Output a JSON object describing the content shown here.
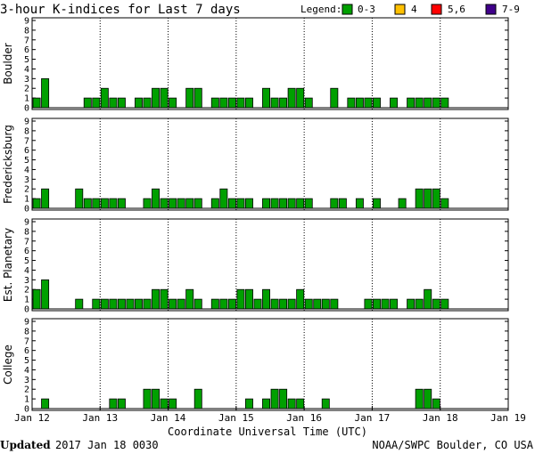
{
  "title": "3-hour K-indices for Last 7 days",
  "legend": {
    "label": "Legend:",
    "items": [
      {
        "label": "0-3",
        "color": "#00a000"
      },
      {
        "label": "4",
        "color": "#ffc000"
      },
      {
        "label": "5,6",
        "color": "#ff0000"
      },
      {
        "label": "7-9",
        "color": "#40008a"
      }
    ]
  },
  "footer": {
    "updated_label": "Updated",
    "updated_value": "2017 Jan 18 0030",
    "source": "NOAA/SWPC Boulder, CO USA"
  },
  "chart_data": [
    {
      "type": "bar",
      "name": "Boulder",
      "ylabel": "Boulder",
      "ylim": [
        0,
        9
      ],
      "yticks": [
        "0",
        "1",
        "2",
        "3",
        "4",
        "5",
        "6",
        "7",
        "8",
        "9"
      ],
      "values": [
        1,
        3,
        0,
        0,
        0,
        0,
        1,
        1,
        2,
        1,
        1,
        0,
        1,
        1,
        2,
        2,
        1,
        0,
        2,
        2,
        0,
        1,
        1,
        1,
        1,
        1,
        0,
        2,
        1,
        1,
        2,
        2,
        1,
        0,
        0,
        2,
        0,
        1,
        1,
        1,
        1,
        0,
        1,
        0,
        1,
        1,
        1,
        1,
        1
      ],
      "bar_color": "#00a000"
    },
    {
      "type": "bar",
      "name": "Fredericksburg",
      "ylabel": "Fredericksburg",
      "ylim": [
        0,
        9
      ],
      "yticks": [
        "0",
        "1",
        "2",
        "3",
        "4",
        "5",
        "6",
        "7",
        "8",
        "9"
      ],
      "values": [
        1,
        2,
        0,
        0,
        0,
        2,
        1,
        1,
        1,
        1,
        1,
        0,
        0,
        1,
        2,
        1,
        1,
        1,
        1,
        1,
        0,
        1,
        2,
        1,
        1,
        1,
        0,
        1,
        1,
        1,
        1,
        1,
        1,
        0,
        0,
        1,
        1,
        0,
        1,
        0,
        1,
        0,
        0,
        1,
        0,
        2,
        2,
        2,
        1
      ],
      "bar_color": "#00a000"
    },
    {
      "type": "bar",
      "name": "Est. Planetary",
      "ylabel": "Est. Planetary",
      "ylim": [
        0,
        9
      ],
      "yticks": [
        "0",
        "1",
        "2",
        "3",
        "4",
        "5",
        "6",
        "7",
        "8",
        "9"
      ],
      "values": [
        2,
        3,
        0,
        0,
        0,
        1,
        0,
        1,
        1,
        1,
        1,
        1,
        1,
        1,
        2,
        2,
        1,
        1,
        2,
        1,
        0,
        1,
        1,
        1,
        2,
        2,
        1,
        2,
        1,
        1,
        1,
        2,
        1,
        1,
        1,
        1,
        0,
        0,
        0,
        1,
        1,
        1,
        1,
        0,
        1,
        1,
        2,
        1,
        1
      ],
      "bar_color": "#00a000"
    },
    {
      "type": "bar",
      "name": "College",
      "ylabel": "College",
      "ylim": [
        0,
        9
      ],
      "yticks": [
        "0",
        "1",
        "2",
        "3",
        "4",
        "5",
        "6",
        "7",
        "8",
        "9"
      ],
      "values": [
        0,
        1,
        0,
        0,
        0,
        0,
        0,
        0,
        0,
        1,
        1,
        0,
        0,
        2,
        2,
        1,
        1,
        0,
        0,
        2,
        0,
        0,
        0,
        0,
        0,
        1,
        0,
        1,
        2,
        2,
        1,
        1,
        0,
        0,
        1,
        0,
        0,
        0,
        0,
        0,
        0,
        0,
        0,
        0,
        0,
        2,
        2,
        1,
        0
      ],
      "bar_color": "#00a000"
    }
  ],
  "x_axis": {
    "ticks": [
      "Jan 12",
      "Jan 13",
      "Jan 14",
      "Jan 15",
      "Jan 16",
      "Jan 17",
      "Jan 18",
      "Jan 19"
    ],
    "label": "Coordinate Universal Time (UTC)",
    "bins_per_day": 8,
    "days": 7
  }
}
